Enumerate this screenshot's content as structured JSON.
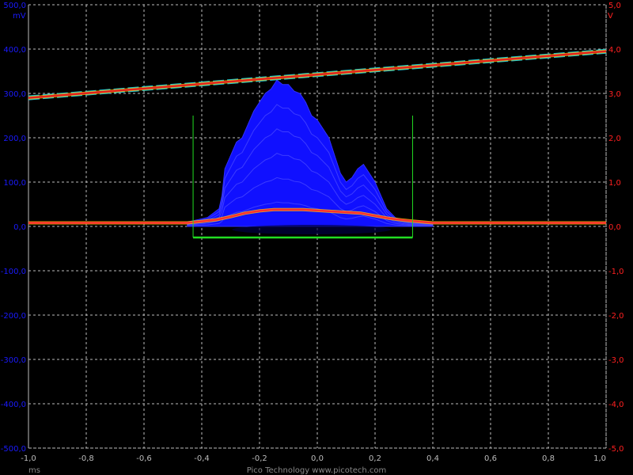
{
  "chart_data": {
    "type": "line",
    "footer": "Pico Technology   www.picotech.com",
    "x_unit": "ms",
    "x_ticks": [
      "-1,0",
      "-0,8",
      "-0,6",
      "-0,4",
      "-0,2",
      "0,0",
      "0,2",
      "0,4",
      "0,6",
      "0,8",
      "1,0"
    ],
    "xlim": [
      -1.0,
      1.0
    ],
    "left_axis": {
      "unit": "mV",
      "color": "#1a1aff",
      "ylim": [
        -500,
        500
      ],
      "ticks": [
        "500,0",
        "400,0",
        "300,0",
        "200,0",
        "100,0",
        "0,0",
        "-100,0",
        "-200,0",
        "-300,0",
        "-400,0",
        "-500,0"
      ],
      "tick_values": [
        500,
        400,
        300,
        200,
        100,
        0,
        -100,
        -200,
        -300,
        -400,
        -500
      ]
    },
    "right_axis": {
      "unit": "V",
      "color": "#ff2020",
      "ylim": [
        -5.0,
        5.0
      ],
      "ticks": [
        "5,0",
        "4,0",
        "3,0",
        "2,0",
        "1,0",
        "0,0",
        "-1,0",
        "-2,0",
        "-3,0",
        "-4,0",
        "-5,0"
      ],
      "tick_values": [
        5,
        4,
        3,
        2,
        1,
        0,
        -1,
        -2,
        -3,
        -4,
        -5
      ]
    },
    "grid": true,
    "series": [
      {
        "axis": "right",
        "color_core": "#e02020",
        "color_edge": "#20c0d0",
        "x": [
          -1.0,
          1.0
        ],
        "y": [
          2.9,
          3.95
        ]
      },
      {
        "axis": "left",
        "color_core": "#ff3030",
        "x": [
          -1.0,
          -0.45,
          -0.42,
          -0.35,
          -0.3,
          -0.25,
          -0.2,
          -0.15,
          -0.1,
          -0.05,
          0.0,
          0.05,
          0.1,
          0.15,
          0.2,
          0.25,
          0.3,
          0.33,
          0.4,
          1.0
        ],
        "y": [
          8,
          8,
          10,
          15,
          22,
          30,
          35,
          38,
          38,
          38,
          36,
          34,
          32,
          30,
          24,
          18,
          14,
          12,
          8,
          8
        ]
      }
    ],
    "envelope": {
      "axis": "left",
      "color": "#1010ff",
      "x": [
        -0.45,
        -0.38,
        -0.34,
        -0.33,
        -0.32,
        -0.3,
        -0.28,
        -0.26,
        -0.24,
        -0.22,
        -0.2,
        -0.18,
        -0.16,
        -0.14,
        -0.12,
        -0.1,
        -0.08,
        -0.06,
        -0.04,
        -0.02,
        0.0,
        0.02,
        0.04,
        0.06,
        0.08,
        0.1,
        0.12,
        0.14,
        0.16,
        0.18,
        0.2,
        0.22,
        0.24,
        0.27,
        0.3,
        0.35,
        0.4
      ],
      "y": [
        10,
        20,
        40,
        70,
        130,
        160,
        190,
        200,
        230,
        260,
        280,
        300,
        310,
        330,
        320,
        320,
        305,
        300,
        280,
        250,
        240,
        220,
        200,
        160,
        120,
        100,
        110,
        130,
        140,
        120,
        100,
        70,
        40,
        20,
        12,
        8,
        8
      ]
    },
    "mask": {
      "color": "#22dd22",
      "x_left": -0.43,
      "x_right": 0.33,
      "y_top": 250,
      "y_bottom": -25
    }
  }
}
